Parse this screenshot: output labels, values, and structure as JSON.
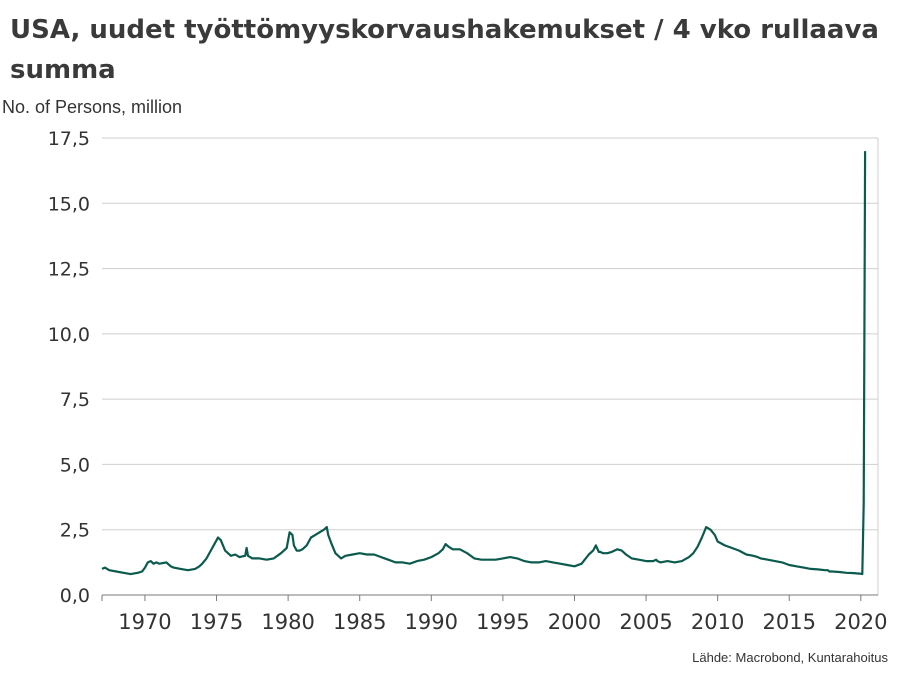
{
  "chart_data": {
    "type": "line",
    "title": "USA, uudet työttömyyskorvaushakemukset / 4 vko rullaava summa",
    "ylabel": "No. of Persons, million",
    "xlabel": "",
    "source": "Lähde: Macrobond, Kuntarahoitus",
    "ylim": [
      0,
      17.5
    ],
    "xlim": [
      1967,
      2021.2
    ],
    "yticks": [
      0,
      2.5,
      5,
      7.5,
      10,
      12.5,
      15,
      17.5
    ],
    "ytick_labels": [
      "0,0",
      "2,5",
      "5,0",
      "7,5",
      "10,0",
      "12,5",
      "15,0",
      "17,5"
    ],
    "xticks": [
      1970,
      1975,
      1980,
      1985,
      1990,
      1995,
      2000,
      2005,
      2010,
      2015,
      2020
    ],
    "xtick_labels": [
      "1970",
      "1975",
      "1980",
      "1985",
      "1990",
      "1995",
      "2000",
      "2005",
      "2010",
      "2015",
      "2020"
    ],
    "grid": "horizontal",
    "legend": "none",
    "line_color": "#0b5a4e",
    "series": [
      {
        "x": [
          1967.0,
          1967.2,
          1967.5,
          1968.0,
          1968.5,
          1969.0,
          1969.5,
          1969.8,
          1970.0,
          1970.2,
          1970.4,
          1970.6,
          1970.8,
          1971.0,
          1971.5,
          1971.8,
          1972.0,
          1972.5,
          1973.0,
          1973.5,
          1973.8,
          1974.0,
          1974.3,
          1974.6,
          1974.9,
          1975.1,
          1975.3,
          1975.6,
          1976.0,
          1976.3,
          1976.6,
          1977.0,
          1977.1,
          1977.2,
          1977.5,
          1978.0,
          1978.5,
          1979.0,
          1979.5,
          1979.9,
          1980.1,
          1980.3,
          1980.4,
          1980.6,
          1980.8,
          1981.0,
          1981.3,
          1981.6,
          1981.9,
          1982.2,
          1982.5,
          1982.7,
          1982.8,
          1983.0,
          1983.3,
          1983.7,
          1984.0,
          1984.5,
          1985.0,
          1985.5,
          1986.0,
          1986.5,
          1987.0,
          1987.5,
          1988.0,
          1988.5,
          1989.0,
          1989.5,
          1990.0,
          1990.5,
          1990.8,
          1991.0,
          1991.2,
          1991.5,
          1992.0,
          1992.5,
          1993.0,
          1993.5,
          1994.0,
          1994.5,
          1995.0,
          1995.5,
          1996.0,
          1996.5,
          1997.0,
          1997.5,
          1998.0,
          1998.5,
          1999.0,
          1999.5,
          2000.0,
          2000.5,
          2001.0,
          2001.3,
          2001.5,
          2001.7,
          2001.8,
          2002.0,
          2002.3,
          2002.6,
          2003.0,
          2003.3,
          2003.6,
          2004.0,
          2004.5,
          2005.0,
          2005.5,
          2005.7,
          2005.8,
          2006.0,
          2006.5,
          2007.0,
          2007.5,
          2008.0,
          2008.3,
          2008.6,
          2008.9,
          2009.2,
          2009.5,
          2009.8,
          2010.0,
          2010.5,
          2011.0,
          2011.5,
          2012.0,
          2012.5,
          2012.8,
          2013.0,
          2013.5,
          2014.0,
          2014.5,
          2015.0,
          2015.5,
          2016.0,
          2016.5,
          2017.0,
          2017.5,
          2017.7,
          2017.8,
          2018.0,
          2018.5,
          2019.0,
          2019.5,
          2019.9,
          2020.1,
          2020.2,
          2020.25,
          2020.3
        ],
        "values": [
          1.0,
          1.05,
          0.95,
          0.9,
          0.85,
          0.8,
          0.85,
          0.9,
          1.05,
          1.25,
          1.3,
          1.2,
          1.25,
          1.2,
          1.25,
          1.1,
          1.05,
          1.0,
          0.95,
          1.0,
          1.1,
          1.2,
          1.4,
          1.7,
          2.0,
          2.2,
          2.1,
          1.7,
          1.5,
          1.55,
          1.45,
          1.5,
          1.8,
          1.5,
          1.4,
          1.4,
          1.35,
          1.4,
          1.6,
          1.8,
          2.4,
          2.3,
          1.9,
          1.7,
          1.7,
          1.75,
          1.9,
          2.2,
          2.3,
          2.4,
          2.5,
          2.6,
          2.3,
          2.0,
          1.6,
          1.4,
          1.5,
          1.55,
          1.6,
          1.55,
          1.55,
          1.45,
          1.35,
          1.25,
          1.25,
          1.2,
          1.3,
          1.35,
          1.45,
          1.6,
          1.75,
          1.95,
          1.85,
          1.75,
          1.75,
          1.6,
          1.4,
          1.35,
          1.35,
          1.35,
          1.4,
          1.45,
          1.4,
          1.3,
          1.25,
          1.25,
          1.3,
          1.25,
          1.2,
          1.15,
          1.1,
          1.2,
          1.55,
          1.7,
          1.9,
          1.65,
          1.65,
          1.6,
          1.6,
          1.65,
          1.75,
          1.7,
          1.55,
          1.4,
          1.35,
          1.3,
          1.3,
          1.35,
          1.3,
          1.25,
          1.3,
          1.25,
          1.3,
          1.45,
          1.6,
          1.85,
          2.2,
          2.6,
          2.5,
          2.3,
          2.05,
          1.9,
          1.8,
          1.7,
          1.55,
          1.5,
          1.45,
          1.4,
          1.35,
          1.3,
          1.25,
          1.15,
          1.1,
          1.05,
          1.0,
          0.98,
          0.95,
          0.95,
          0.9,
          0.9,
          0.88,
          0.85,
          0.84,
          0.82,
          0.8,
          3.5,
          10.0,
          17.0
        ]
      }
    ]
  }
}
